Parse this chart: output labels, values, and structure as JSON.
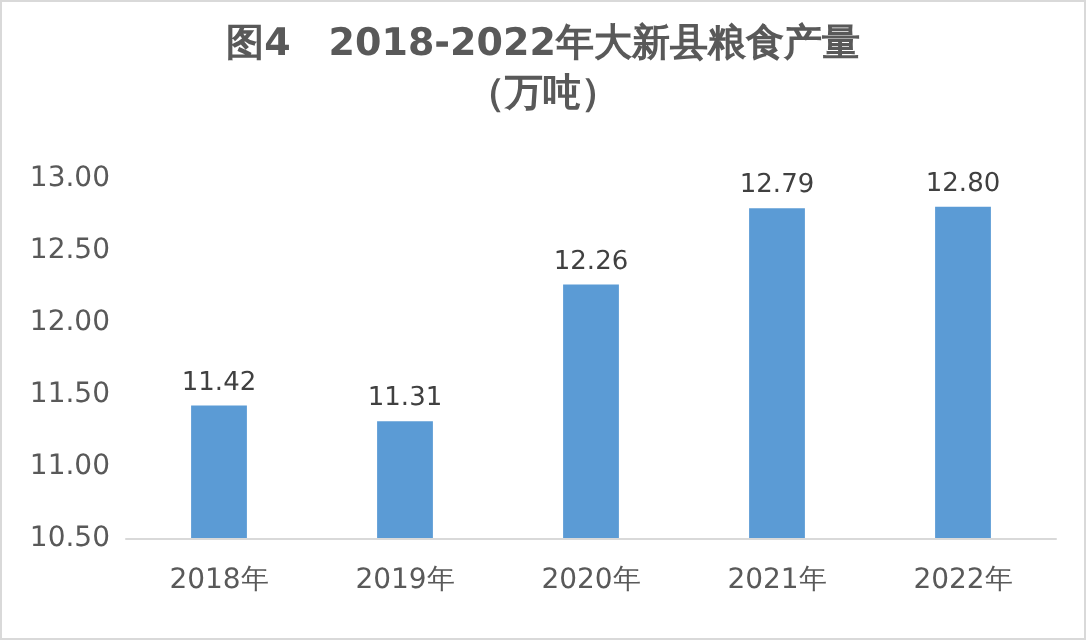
{
  "chart_data": {
    "type": "bar",
    "title": "图4　2018-2022年大新县粮食产量",
    "subtitle": "（万吨）",
    "categories": [
      "2018年",
      "2019年",
      "2020年",
      "2021年",
      "2022年"
    ],
    "values": [
      11.42,
      11.31,
      12.26,
      12.79,
      12.8
    ],
    "color": "#5b9bd5",
    "ylim": [
      10.5,
      13
    ],
    "yticks": [
      {
        "value": 10.5,
        "label": "10.50"
      },
      {
        "value": 11,
        "label": "11.00"
      },
      {
        "value": 11.5,
        "label": "11.50"
      },
      {
        "value": 12,
        "label": "12.00"
      },
      {
        "value": 12.5,
        "label": "12.50"
      },
      {
        "value": 13,
        "label": "13.00"
      }
    ],
    "value_labels": [
      "11.42",
      "11.31",
      "12.26",
      "12.79",
      "12.80"
    ],
    "grid": false
  }
}
